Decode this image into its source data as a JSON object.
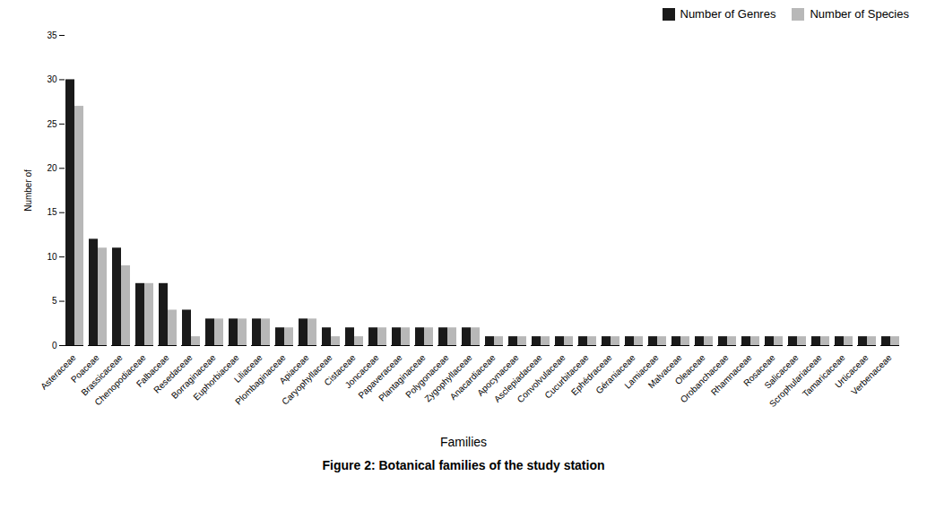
{
  "chart_data": {
    "type": "bar",
    "caption": "Figure 2: Botanical families of the study station",
    "xlabel": "Families",
    "ylabel": "Number of",
    "categories": [
      "Asteraceae",
      "Poaceae",
      "Brassicaceae",
      "Chenopodiaceae",
      "Falbaceae",
      "Resedaceae",
      "Borraginaceae",
      "Euphorbiaceae",
      "Liliaceae",
      "Plombaginaceae",
      "Apiaceae",
      "Caryophyllaceae",
      "Cistaceae",
      "Joncaceae",
      "Papaveraceae",
      "Plantaginaceae",
      "Polygonaceae",
      "Zygophyllaceae",
      "Anacardiaceae",
      "Apocynaceae",
      "Asclepiadaceae",
      "Convolvulaceae",
      "Cucurbitaceae",
      "Ephédraceae",
      "Géraniaceae",
      "Lamiaceae",
      "Malvaceae",
      "Oleaceae",
      "Orobanchaceae",
      "Rhamnaceae",
      "Rosaceae",
      "Salicaceae",
      "Scrophulariaceae",
      "Tamaricaceae",
      "Urticaceae",
      "Verbenaceae"
    ],
    "series": [
      {
        "name": "Number of Genres",
        "color": "#1a1a1a",
        "values": [
          30,
          12,
          11,
          7,
          7,
          4,
          3,
          3,
          3,
          2,
          3,
          2,
          2,
          2,
          2,
          2,
          2,
          2,
          1,
          1,
          1,
          1,
          1,
          1,
          1,
          1,
          1,
          1,
          1,
          1,
          1,
          1,
          1,
          1,
          1,
          1
        ]
      },
      {
        "name": "Number of Species",
        "color": "#b8b8b8",
        "values": [
          27,
          11,
          9,
          7,
          4,
          1,
          3,
          3,
          3,
          2,
          3,
          1,
          1,
          2,
          2,
          2,
          2,
          2,
          1,
          1,
          1,
          1,
          1,
          1,
          1,
          1,
          1,
          1,
          1,
          1,
          1,
          1,
          1,
          1,
          1,
          1
        ]
      }
    ],
    "ylim": [
      0,
      35
    ],
    "yticks": [
      0,
      5,
      10,
      15,
      20,
      25,
      30,
      35
    ],
    "legend": "upper right",
    "grid": false
  }
}
